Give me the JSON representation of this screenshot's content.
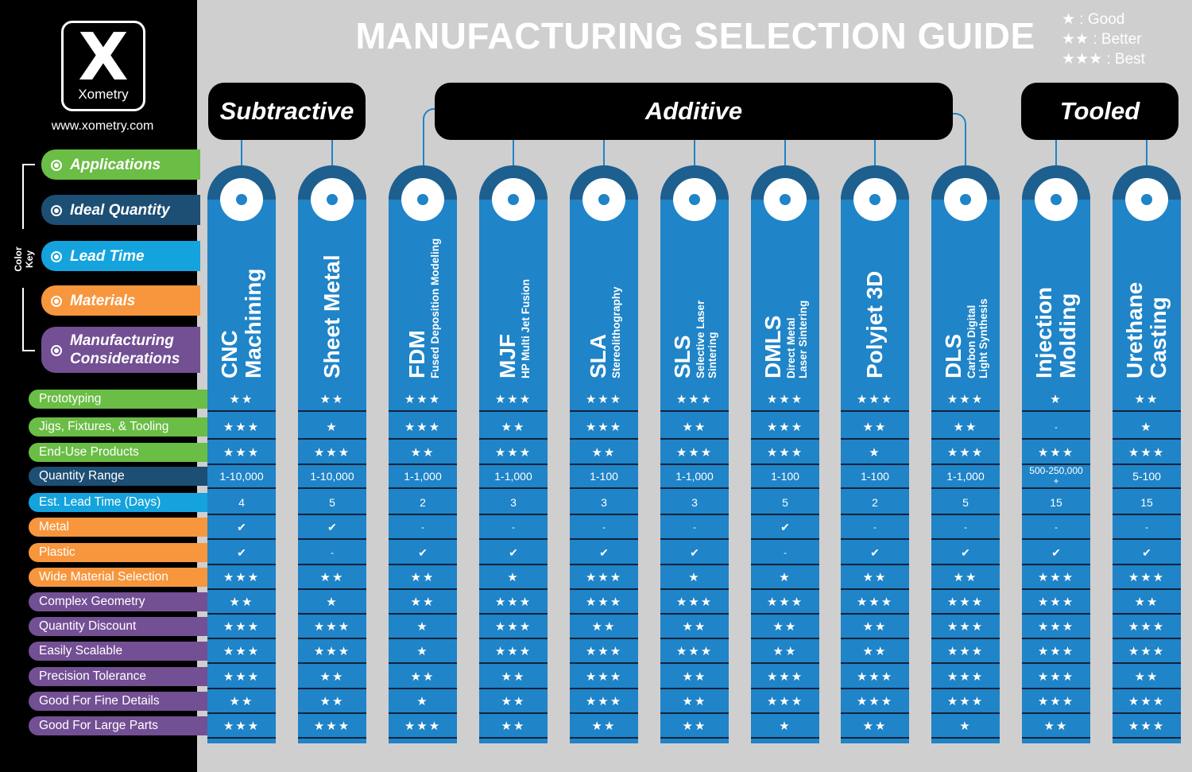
{
  "title": "MANUFACTURING SELECTION GUIDE",
  "brand": {
    "logo_mark": "X",
    "wordmark": "Xometry",
    "url": "www.xometry.com"
  },
  "legend": [
    "★ : Good",
    "★★ : Better",
    "★★★ : Best"
  ],
  "color_key": {
    "label": "Color Key",
    "items": [
      {
        "label": "Applications",
        "color": "#6abd45"
      },
      {
        "label": "Ideal Quantity",
        "color": "#1d4e74"
      },
      {
        "label": "Lead Time",
        "color": "#14a3dd"
      },
      {
        "label": "Materials",
        "color": "#f7963d"
      },
      {
        "label": "Manufacturing Considerations",
        "color": "#734f94"
      }
    ]
  },
  "categories": [
    {
      "label": "Subtractive"
    },
    {
      "label": "Additive"
    },
    {
      "label": "Tooled"
    }
  ],
  "rows": [
    {
      "label": "Prototyping",
      "group": "Applications"
    },
    {
      "label": "Jigs, Fixtures, & Tooling",
      "group": "Applications"
    },
    {
      "label": "End-Use Products",
      "group": "Applications"
    },
    {
      "label": "Quantity Range",
      "group": "Ideal Quantity"
    },
    {
      "label": "Est. Lead Time (Days)",
      "group": "Lead Time"
    },
    {
      "label": "Metal",
      "group": "Materials"
    },
    {
      "label": "Plastic",
      "group": "Materials"
    },
    {
      "label": "Wide Material Selection",
      "group": "Materials"
    },
    {
      "label": "Complex Geometry",
      "group": "Manufacturing Considerations"
    },
    {
      "label": "Quantity Discount",
      "group": "Manufacturing Considerations"
    },
    {
      "label": "Easily Scalable",
      "group": "Manufacturing Considerations"
    },
    {
      "label": "Precision Tolerance",
      "group": "Manufacturing Considerations"
    },
    {
      "label": "Good For Fine Details",
      "group": "Manufacturing Considerations"
    },
    {
      "label": "Good For Large Parts",
      "group": "Manufacturing Considerations"
    }
  ],
  "processes": [
    {
      "name": [
        "CNC",
        "Machining"
      ],
      "sub": [],
      "values": [
        "★★",
        "★★★",
        "★★★",
        "1-10,000",
        "4",
        "✔",
        "✔",
        "★★★",
        "★★",
        "★★★",
        "★★★",
        "★★★",
        "★★",
        "★★★"
      ]
    },
    {
      "name": [
        "Sheet  Metal"
      ],
      "sub": [],
      "values": [
        "★★",
        "★",
        "★★★",
        "1-10,000",
        "5",
        "✔",
        "-",
        "★★",
        "★",
        "★★★",
        "★★★",
        "★★",
        "★★",
        "★★★"
      ]
    },
    {
      "name": [
        "FDM"
      ],
      "sub": [
        "Fused Deposition Modeling"
      ],
      "values": [
        "★★★",
        "★★★",
        "★★",
        "1-1,000",
        "2",
        "-",
        "✔",
        "★★",
        "★★",
        "★",
        "★",
        "★★",
        "★",
        "★★★"
      ]
    },
    {
      "name": [
        "MJF"
      ],
      "sub": [
        "HP Multi Jet Fusion"
      ],
      "values": [
        "★★★",
        "★★",
        "★★★",
        "1-1,000",
        "3",
        "-",
        "✔",
        "★",
        "★★★",
        "★★★",
        "★★★",
        "★★",
        "★★",
        "★★"
      ]
    },
    {
      "name": [
        "SLA"
      ],
      "sub": [
        "Stereolithography"
      ],
      "values": [
        "★★★",
        "★★★",
        "★★",
        "1-100",
        "3",
        "-",
        "✔",
        "★★★",
        "★★★",
        "★★",
        "★★★",
        "★★★",
        "★★★",
        "★★"
      ]
    },
    {
      "name": [
        "SLS"
      ],
      "sub": [
        "Selective Laser",
        "Sintering"
      ],
      "values": [
        "★★★",
        "★★",
        "★★★",
        "1-1,000",
        "3",
        "-",
        "✔",
        "★",
        "★★★",
        "★★",
        "★★★",
        "★★",
        "★★",
        "★★"
      ]
    },
    {
      "name": [
        "DMLS"
      ],
      "sub": [
        "Direct Metal",
        "Laser Sintering"
      ],
      "values": [
        "★★★",
        "★★★",
        "★★★",
        "1-100",
        "5",
        "✔",
        "-",
        "★",
        "★★★",
        "★★",
        "★★",
        "★★★",
        "★★★",
        "★"
      ]
    },
    {
      "name": [
        "Polyjet 3D"
      ],
      "sub": [],
      "values": [
        "★★★",
        "★★",
        "★",
        "1-100",
        "2",
        "-",
        "✔",
        "★★",
        "★★★",
        "★★",
        "★★",
        "★★★",
        "★★★",
        "★★"
      ]
    },
    {
      "name": [
        "DLS"
      ],
      "sub": [
        "Carbon Digital",
        "Light Synthesis"
      ],
      "values": [
        "★★★",
        "★★",
        "★★★",
        "1-1,000",
        "5",
        "-",
        "✔",
        "★★",
        "★★★",
        "★★★",
        "★★★",
        "★★★",
        "★★★",
        "★"
      ]
    },
    {
      "name": [
        "Injection",
        "Molding"
      ],
      "sub": [],
      "values": [
        "★",
        "-",
        "★★★",
        "500-250,000+",
        "15",
        "-",
        "✔",
        "★★★",
        "★★★",
        "★★★",
        "★★★",
        "★★★",
        "★★★",
        "★★"
      ]
    },
    {
      "name": [
        "Urethane",
        "Casting"
      ],
      "sub": [],
      "values": [
        "★★",
        "★",
        "★★★",
        "5-100",
        "15",
        "-",
        "✔",
        "★★★",
        "★★",
        "★★★",
        "★★★",
        "★★",
        "★★★",
        "★★★"
      ]
    }
  ]
}
